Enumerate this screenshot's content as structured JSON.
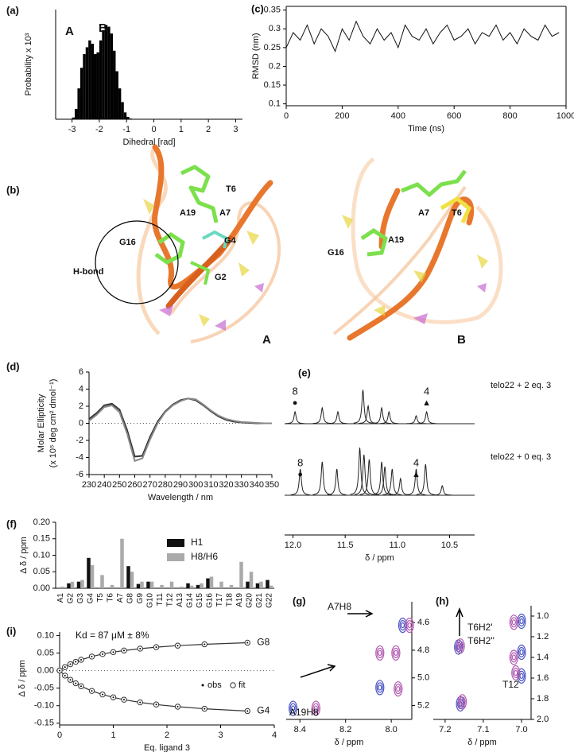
{
  "chart_data": [
    {
      "label": "(a)",
      "type": "histogram",
      "xlabel": "Dihedral [rad]",
      "ylabel": "Probability x 10³",
      "annotations": [
        "A",
        "B"
      ],
      "color": "#000000",
      "bins": [
        -3.0,
        -2.9,
        -2.8,
        -2.7,
        -2.6,
        -2.5,
        -2.4,
        -2.3,
        -2.2,
        -2.1,
        -2.0,
        -1.9,
        -1.8,
        -1.7,
        -1.6,
        -1.5,
        -1.4,
        -1.3,
        -1.2,
        -1.1,
        -1.0,
        -0.9,
        -0.8
      ],
      "values": [
        0.05,
        0.3,
        0.9,
        1.5,
        1.9,
        2.1,
        2.3,
        2.2,
        1.9,
        1.95,
        2.3,
        2.6,
        2.75,
        2.7,
        2.5,
        2.0,
        1.4,
        0.9,
        0.5,
        0.2,
        0.07,
        0.02
      ],
      "xlim": [
        -3.6,
        3.25
      ],
      "ylim": [
        0,
        3.2
      ],
      "xticks": [
        -3,
        -2,
        -1,
        0,
        1,
        2,
        3
      ]
    },
    {
      "label": "(c)",
      "type": "line",
      "xlabel": "Time (ns)",
      "ylabel": "RMSD (nm)",
      "color": "#111111",
      "x": [
        0,
        25,
        50,
        75,
        100,
        125,
        150,
        175,
        200,
        225,
        250,
        275,
        300,
        325,
        350,
        375,
        400,
        425,
        450,
        475,
        500,
        525,
        550,
        575,
        600,
        625,
        650,
        675,
        700,
        725,
        750,
        775,
        800,
        825,
        850,
        875,
        900,
        925,
        950,
        975
      ],
      "values": [
        0.25,
        0.29,
        0.27,
        0.31,
        0.26,
        0.3,
        0.28,
        0.24,
        0.3,
        0.27,
        0.32,
        0.28,
        0.26,
        0.3,
        0.27,
        0.29,
        0.25,
        0.31,
        0.28,
        0.27,
        0.3,
        0.26,
        0.29,
        0.31,
        0.27,
        0.28,
        0.3,
        0.26,
        0.29,
        0.28,
        0.31,
        0.27,
        0.29,
        0.26,
        0.3,
        0.28,
        0.27,
        0.31,
        0.28,
        0.29
      ],
      "xlim": [
        0,
        1000
      ],
      "ylim": [
        0.095,
        0.36
      ],
      "xticks": [
        0,
        200,
        400,
        600,
        800,
        1000
      ],
      "yticks": [
        0.1,
        0.15,
        0.2,
        0.25,
        0.3,
        0.35
      ]
    },
    {
      "label": "(d)",
      "type": "line",
      "xlabel": "Wavelength / nm",
      "ylabel": [
        "Molar Ellipticity",
        "(x 10⁵ deg cm² dmol⁻¹)"
      ],
      "hline": 0,
      "x": [
        230,
        235,
        240,
        245,
        250,
        255,
        260,
        265,
        270,
        275,
        280,
        285,
        290,
        295,
        300,
        305,
        310,
        315,
        320,
        325,
        330,
        335,
        340,
        345,
        350
      ],
      "series": [
        {
          "color": "#333333",
          "values": [
            0.5,
            1.2,
            2.1,
            2.3,
            1.6,
            -0.8,
            -3.9,
            -3.8,
            -1.6,
            0.2,
            1.4,
            2.2,
            2.7,
            2.9,
            2.7,
            2.1,
            1.4,
            0.8,
            0.4,
            0.2,
            0.1,
            0.05,
            0,
            0,
            0
          ]
        },
        {
          "color": "#888888",
          "values": [
            0.3,
            1.0,
            1.9,
            2.1,
            1.3,
            -1.2,
            -4.4,
            -4.1,
            -1.9,
            0,
            1.3,
            2.1,
            2.6,
            2.9,
            2.8,
            2.2,
            1.5,
            0.9,
            0.5,
            0.3,
            0.15,
            0.1,
            0.05,
            0,
            0
          ]
        }
      ],
      "xlim": [
        230,
        350
      ],
      "ylim": [
        -6,
        6
      ],
      "xticks": [
        230,
        240,
        250,
        260,
        270,
        280,
        290,
        300,
        310,
        320,
        330,
        340,
        350
      ],
      "yticks": [
        -6,
        -4,
        -2,
        0,
        2,
        4,
        6
      ]
    },
    {
      "label": "(e)",
      "type": "spectrum",
      "xlabel": "δ / ppm",
      "series": [
        {
          "name": "telo22 + 2 eq. 3",
          "color": "#222222",
          "peaks": [
            11.98,
            11.72,
            11.57,
            11.33,
            11.28,
            11.15,
            11.08,
            10.82,
            10.72
          ],
          "values": [
            0.3,
            0.4,
            0.3,
            0.85,
            0.45,
            0.4,
            0.3,
            0.2,
            0.3
          ],
          "annotations": [
            {
              "text": "8",
              "symbol": "●",
              "x": 11.98
            },
            {
              "text": "4",
              "symbol": "▲",
              "x": 10.72
            }
          ]
        },
        {
          "name": "telo22 + 0 eq. 3",
          "color": "#222222",
          "peaks": [
            11.93,
            11.72,
            11.58,
            11.36,
            11.32,
            11.27,
            11.15,
            11.12,
            11.05,
            10.97,
            10.82,
            10.73,
            10.57
          ],
          "values": [
            0.55,
            0.7,
            0.55,
            1.0,
            0.85,
            0.75,
            0.7,
            0.6,
            0.55,
            0.35,
            0.55,
            0.65,
            0.2
          ],
          "annotations": [
            {
              "text": "8",
              "symbol": "●",
              "x": 11.93
            },
            {
              "text": "4",
              "symbol": "▲",
              "x": 10.82
            }
          ]
        }
      ],
      "xlim": [
        12.08,
        10.26
      ],
      "xticks": [
        {
          "value": 12,
          "label": "12.0"
        },
        11.5,
        {
          "value": 11,
          "label": "11.0"
        },
        10.5
      ]
    },
    {
      "label": "(f)",
      "type": "bar",
      "ylabel": "Δ δ / ppm",
      "categories": [
        "A1",
        "G2",
        "G3",
        "G4",
        "T5",
        "T6",
        "A7",
        "G8",
        "G9",
        "G10",
        "T11",
        "T12",
        "A13",
        "G14",
        "G15",
        "G16",
        "T17",
        "T18",
        "A19",
        "G20",
        "G21",
        "G22"
      ],
      "series": [
        {
          "name": "H1",
          "color": "#111111",
          "values": [
            null,
            0.015,
            0.02,
            0.092,
            null,
            null,
            null,
            0.067,
            0.013,
            0.02,
            null,
            null,
            null,
            0.015,
            0.01,
            0.03,
            null,
            null,
            null,
            0.02,
            0.015,
            0.025
          ]
        },
        {
          "name": "H8/H6",
          "color": "#aaaaaa",
          "values": [
            0.005,
            0.02,
            0.025,
            0.07,
            0.04,
            0.01,
            0.15,
            0.05,
            0.02,
            0.02,
            0.01,
            0.02,
            0.005,
            0.008,
            0.015,
            0.035,
            0.02,
            0.01,
            0.08,
            0.05,
            0.02,
            0.008
          ]
        }
      ],
      "ylim": [
        0,
        0.2
      ],
      "yticks": [
        {
          "value": 0,
          "label": "0.00"
        },
        0.05,
        {
          "value": 0.1,
          "label": "0.10"
        },
        0.15,
        {
          "value": 0.2,
          "label": "0.20"
        }
      ]
    },
    {
      "label": "(g)",
      "type": "contour",
      "xlabel": "δ / ppm",
      "annotations": [
        "A7H8",
        "A19H8"
      ],
      "series": [
        {
          "color": "#4a55c4",
          "x": [
            7.95,
            8.05,
            8.43
          ],
          "y": [
            4.62,
            5.07,
            5.22
          ]
        },
        {
          "color": "#b25ab0",
          "x": [
            7.92,
            7.97,
            8.33,
            7.98,
            8.05
          ],
          "y": [
            4.62,
            5.08,
            5.22,
            4.82,
            4.82
          ]
        }
      ],
      "xlim": [
        8.46,
        7.91
      ],
      "ylim": [
        5.3,
        4.45
      ],
      "xticks": [
        8.4,
        8.2,
        {
          "value": 8,
          "label": "8.0"
        }
      ],
      "yticks": [
        4.6,
        4.8,
        {
          "value": 5,
          "label": "5.0"
        },
        5.2
      ]
    },
    {
      "label": "(h)",
      "type": "contour",
      "xlabel": "δ / ppm",
      "annotations": [
        "T6H2'",
        "T6H2''",
        "T12"
      ],
      "series": [
        {
          "color": "#4a55c4",
          "x": [
            7.0,
            7.0,
            7.0,
            7.165,
            7.16
          ],
          "y": [
            1.05,
            1.35,
            1.58,
            1.3,
            1.85
          ]
        },
        {
          "color": "#b25ab0",
          "x": [
            7.02,
            7.02,
            7.015,
            7.155,
            7.16
          ],
          "y": [
            1.06,
            1.4,
            1.55,
            1.83,
            1.29
          ]
        }
      ],
      "xlim": [
        7.231,
        6.975
      ],
      "ylim": [
        2.0,
        0.9
      ],
      "xticks": [
        7.2,
        7.1,
        {
          "value": 7,
          "label": "7.0"
        }
      ],
      "yticks": [
        {
          "value": 1,
          "label": "1.0"
        },
        1.2,
        1.4,
        1.6,
        1.8,
        {
          "value": 2,
          "label": "2.0"
        }
      ]
    },
    {
      "label": "(i)",
      "type": "scatter",
      "xlabel": "Eq. ligand 3",
      "ylabel": "Δ δ / ppm",
      "annotation": "Kd = 87 μM ± 8%",
      "legend": [
        "obs",
        "fit"
      ],
      "hline": 0,
      "x": [
        0,
        0.1,
        0.2,
        0.3,
        0.4,
        0.6,
        0.8,
        1.0,
        1.2,
        1.5,
        1.8,
        2.2,
        2.7,
        3.5
      ],
      "series": [
        {
          "name": "G8",
          "color": "#333333",
          "values": [
            0,
            0.01,
            0.0182,
            0.025,
            0.0308,
            0.04,
            0.047,
            0.0526,
            0.0571,
            0.0625,
            0.0667,
            0.071,
            0.075,
            0.0795
          ]
        },
        {
          "name": "G4",
          "color": "#333333",
          "values": [
            0,
            -0.0145,
            -0.0264,
            -0.0363,
            -0.0446,
            -0.058,
            -0.0682,
            -0.0763,
            -0.0829,
            -0.0906,
            -0.0967,
            -0.1029,
            -0.1088,
            -0.1153
          ]
        }
      ],
      "xlim": [
        0,
        4
      ],
      "ylim": [
        -0.155,
        0.11
      ],
      "xticks": [
        0,
        1,
        2,
        3,
        4
      ],
      "yticks": [
        {
          "value": 0.1,
          "label": "0.10"
        },
        0.05,
        {
          "value": 0,
          "label": "0.00"
        },
        -0.05,
        {
          "value": -0.1,
          "label": "-0.10"
        },
        -0.15
      ]
    }
  ],
  "structure": {
    "label": "(b)",
    "labels_A": [
      "T6",
      "A19",
      "A7",
      "G16",
      "G4",
      "H-bond",
      "G2"
    ],
    "labels_B": [
      "A7",
      "T6",
      "A19",
      "G16"
    ],
    "captions": [
      "A",
      "B"
    ]
  }
}
